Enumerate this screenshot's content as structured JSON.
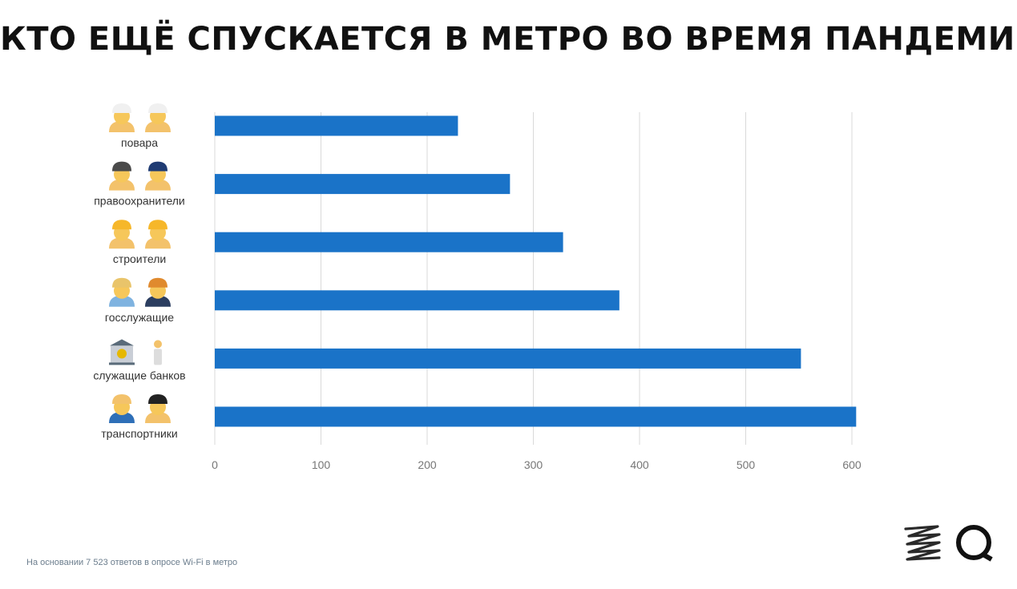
{
  "title": "КТО ЕЩЁ СПУСКАЕТСЯ В МЕТРО ВО ВРЕМЯ ПАНДЕМИИ",
  "footnote": "На основании 7 523 ответов в опросе Wi-Fi в метро",
  "colors": {
    "bar": "#1a73c8",
    "grid": "#d9d9d9",
    "title": "#111111"
  },
  "chart_data": {
    "type": "bar",
    "orientation": "horizontal",
    "categories": [
      "повара",
      "правоохранители",
      "строители",
      "госслужащие",
      "служащие банков",
      "транспортники"
    ],
    "category_icons": [
      [
        "cook-woman-icon",
        "cook-man-icon"
      ],
      [
        "detective-icon",
        "police-officer-icon"
      ],
      [
        "construction-worker-woman-icon",
        "construction-worker-man-icon"
      ],
      [
        "office-worker-man-icon",
        "office-worker-woman-icon"
      ],
      [
        "bank-icon",
        "banker-icon"
      ],
      [
        "mechanic-icon",
        "pilot-icon"
      ]
    ],
    "values": [
      229,
      278,
      328,
      381,
      552,
      604
    ],
    "xlim": [
      0,
      600
    ],
    "xticks": [
      0,
      100,
      200,
      300,
      400,
      500,
      600
    ],
    "grid": true,
    "xlabel": "",
    "ylabel": ""
  }
}
